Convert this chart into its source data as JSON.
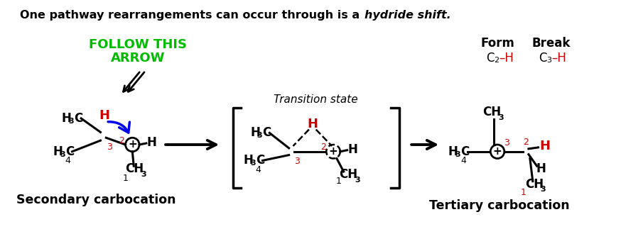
{
  "bg_color": "#ffffff",
  "black": "#000000",
  "red": "#cc0000",
  "green": "#00bb00",
  "blue": "#0000ee",
  "figsize": [
    8.74,
    3.3
  ],
  "dpi": 100,
  "title_normal": "One pathway rearrangements can occur through is a ",
  "title_italic": "hydride shift.",
  "follow_line1": "FOLLOW THIS",
  "follow_line2": "ARROW",
  "label_form": "Form",
  "label_break": "Break",
  "label_secondary": "Secondary carbocation",
  "label_tertiary": "Tertiary carbocation",
  "label_ts": "Transition state"
}
